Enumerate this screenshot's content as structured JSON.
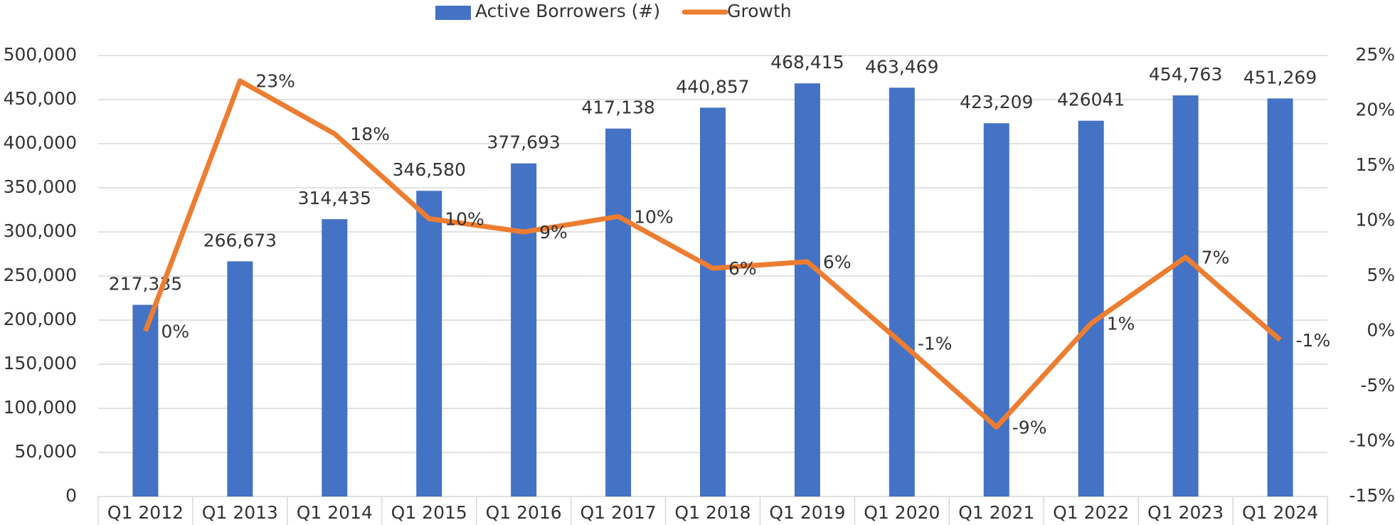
{
  "chart_data": {
    "type": "bar-line",
    "categories": [
      "Q1 2012",
      "Q1 2013",
      "Q1 2014",
      "Q1 2015",
      "Q1 2016",
      "Q1 2017",
      "Q1 2018",
      "Q1 2019",
      "Q1 2020",
      "Q1 2021",
      "Q1 2022",
      "Q1 2023",
      "Q1 2024"
    ],
    "series": [
      {
        "name": "Active Borrowers (#)",
        "type": "bar",
        "color": "#4472c4",
        "values": [
          217335,
          266673,
          314435,
          346580,
          377693,
          417138,
          440857,
          468415,
          463469,
          423209,
          426041,
          454763,
          451269
        ],
        "value_labels": [
          "217,335",
          "266,673",
          "314,435",
          "346,580",
          "377,693",
          "417,138",
          "440,857",
          "468,415",
          "463,469",
          "423,209",
          "426041",
          "454,763",
          "451,269"
        ]
      },
      {
        "name": "Growth",
        "type": "line",
        "axis": "y2",
        "color": "#ed7d31",
        "values": [
          0,
          22.7,
          17.9,
          10.2,
          9.0,
          10.4,
          5.7,
          6.3,
          -1.1,
          -8.7,
          0.7,
          6.7,
          -0.8
        ],
        "value_labels": [
          "0%",
          "23%",
          "18%",
          "10%",
          "9%",
          "10%",
          "6%",
          "6%",
          "-1%",
          "-9%",
          "1%",
          "7%",
          "-1%"
        ]
      }
    ],
    "ylim": [
      0,
      500000
    ],
    "yticks": [
      0,
      {
        "value": 50000,
        "label": "50,000"
      },
      {
        "value": 100000,
        "label": "100,000"
      },
      {
        "value": 150000,
        "label": "150,000"
      },
      {
        "value": 200000,
        "label": "200,000"
      },
      {
        "value": 250000,
        "label": "250,000"
      },
      {
        "value": 300000,
        "label": "300,000"
      },
      {
        "value": 350000,
        "label": "350,000"
      },
      {
        "value": 400000,
        "label": "400,000"
      },
      {
        "value": 450000,
        "label": "450,000"
      },
      {
        "value": 500000,
        "label": "500,000"
      }
    ],
    "y2lim": [
      -15,
      25
    ],
    "y2ticks": [
      {
        "value": -15,
        "label": "-15%"
      },
      {
        "value": -10,
        "label": "-10%"
      },
      {
        "value": -5,
        "label": "-5%"
      },
      {
        "value": 0,
        "label": "0%"
      },
      {
        "value": 5,
        "label": "5%"
      },
      {
        "value": 10,
        "label": "10%"
      },
      {
        "value": 15,
        "label": "15%"
      },
      {
        "value": 20,
        "label": "20%"
      },
      {
        "value": 25,
        "label": "25%"
      }
    ],
    "grid": true,
    "legend": "top"
  }
}
